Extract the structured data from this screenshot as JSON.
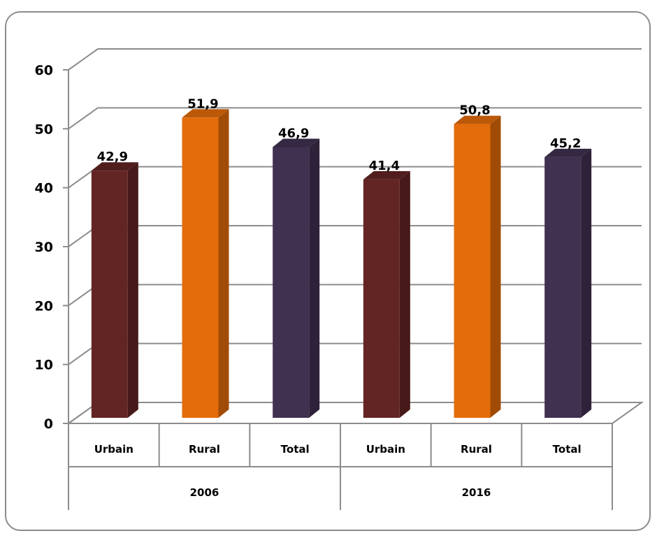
{
  "chart_data": {
    "type": "bar",
    "title": "",
    "xlabel": "",
    "ylabel": "",
    "ylim": [
      0,
      60
    ],
    "yticks": [
      0,
      10,
      20,
      30,
      40,
      50,
      60
    ],
    "grid": true,
    "style": "3d-column",
    "groups": [
      {
        "label": "2006",
        "categories": [
          "Urbain",
          "Rural",
          "Total"
        ],
        "values": [
          42.9,
          51.9,
          46.9
        ],
        "value_labels": [
          "42,9",
          "51,9",
          "46,9"
        ]
      },
      {
        "label": "2016",
        "categories": [
          "Urbain",
          "Rural",
          "Total"
        ],
        "values": [
          41.4,
          50.8,
          45.2
        ],
        "value_labels": [
          "41,4",
          "50,8",
          "45,2"
        ]
      }
    ],
    "colors": {
      "Urbain": "#632523",
      "Rural": "#e46c0a",
      "Total": "#403151",
      "grid": "#8c8c8c",
      "axis": "#8c8c8c"
    }
  }
}
